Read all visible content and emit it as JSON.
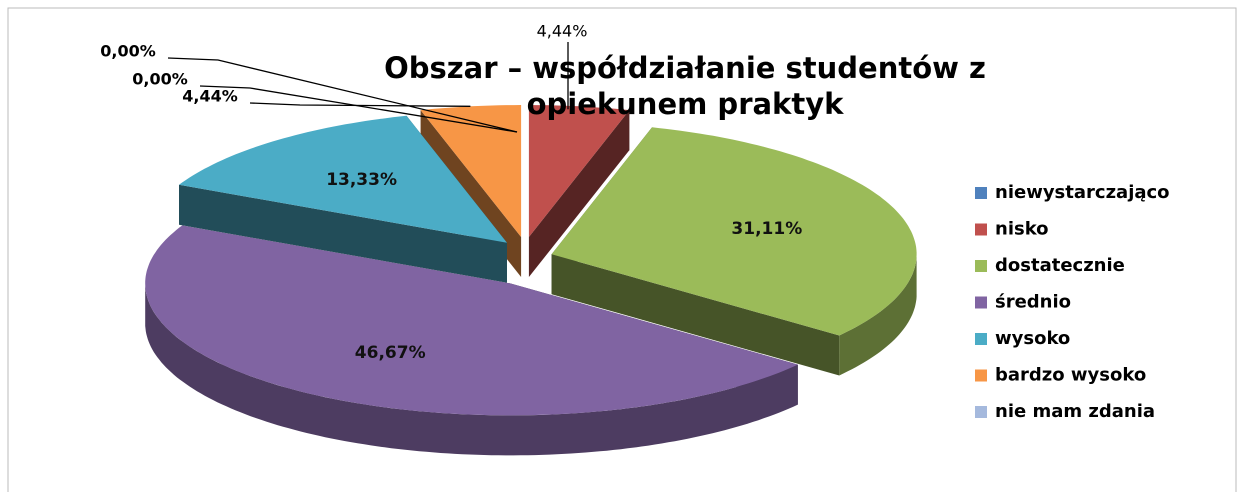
{
  "chart_data": {
    "type": "pie3d",
    "title": "Obszar – współdziałanie studentów z opiekunem praktyk",
    "categories": [
      "niewystarczająco",
      "nisko",
      "dostatecznie",
      "średnio",
      "wysoko",
      "bardzo wysoko",
      "nie mam zdania"
    ],
    "values": [
      0,
      4.44,
      31.11,
      46.67,
      13.33,
      4.44,
      0
    ],
    "value_labels": [
      "0,00%",
      "4,44%",
      "31,11%",
      "46,67%",
      "13,33%",
      "4,44%",
      "0,00%"
    ],
    "colors": [
      "#4f81bd",
      "#c0504d",
      "#9bbb59",
      "#8064a2",
      "#4bacc6",
      "#f79646",
      "#a5b9dd"
    ],
    "legend": "right"
  }
}
